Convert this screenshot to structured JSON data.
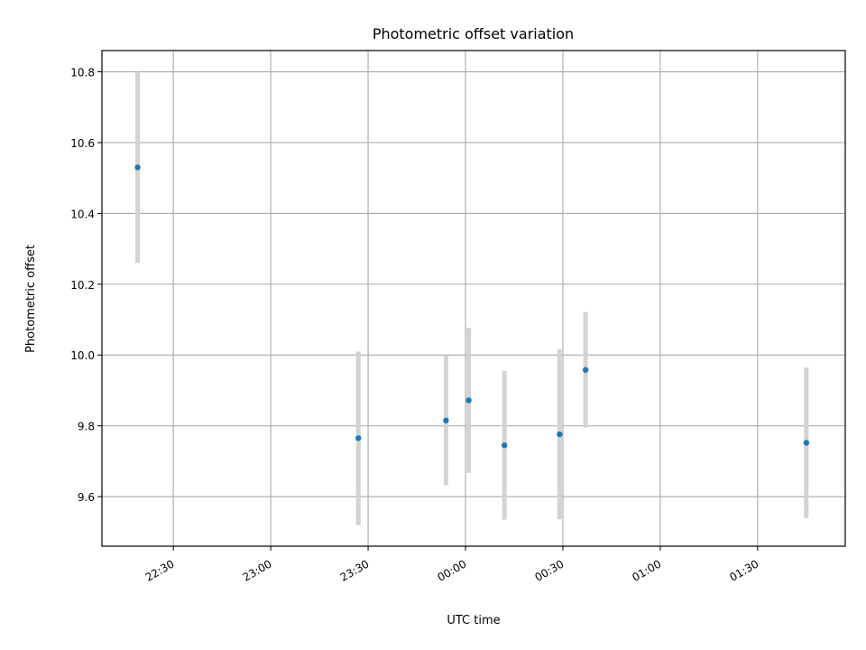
{
  "chart_data": {
    "type": "scatter",
    "title": "Photometric offset variation",
    "xlabel": "UTC time",
    "ylabel": "Photometric offset",
    "x_tick_labels": [
      "22:30",
      "23:00",
      "23:30",
      "00:00",
      "00:30",
      "01:00",
      "01:30"
    ],
    "y_tick_labels": [
      "9.6",
      "9.8",
      "10.0",
      "10.2",
      "10.4",
      "10.6",
      "10.8"
    ],
    "x_ticks": [
      "22:30",
      "23:00",
      "23:30",
      "00:00",
      "00:30",
      "01:00",
      "01:30"
    ],
    "y_ticks": [
      9.6,
      9.8,
      10.0,
      10.2,
      10.4,
      10.6,
      10.8
    ],
    "xlim": [
      "22:08",
      "01:57"
    ],
    "ylim": [
      9.46,
      10.86
    ],
    "grid": true,
    "marker_color": "#1f77b4",
    "errorbar_color": "#d3d3d3",
    "series": [
      {
        "points": [
          {
            "x": "22:19",
            "y": 10.53,
            "err": 0.27
          },
          {
            "x": "23:27",
            "y": 9.765,
            "err": 0.245
          },
          {
            "x": "23:54",
            "y": 9.815,
            "err": 0.183
          },
          {
            "x": "00:01",
            "y": 9.872,
            "err": 0.205
          },
          {
            "x": "00:12",
            "y": 9.745,
            "err": 0.21
          },
          {
            "x": "00:29",
            "y": 9.776,
            "err": 0.24
          },
          {
            "x": "00:37",
            "y": 9.958,
            "err": 0.163
          },
          {
            "x": "01:45",
            "y": 9.752,
            "err": 0.213
          }
        ]
      }
    ]
  }
}
